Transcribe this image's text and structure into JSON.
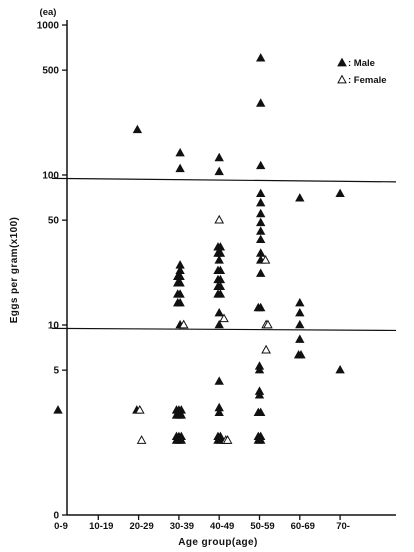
{
  "chart_data": {
    "type": "scatter",
    "xlabel": "Age group(age)",
    "ylabel": "Eggs per gram(x100)",
    "y_unit": "(ea)",
    "y_scale": "log",
    "y_ticks": [
      {
        "label": "1000",
        "value": 1000
      },
      {
        "label": "500",
        "value": 500
      },
      {
        "label": "100",
        "value": 100
      },
      {
        "label": "50",
        "value": 50
      },
      {
        "label": "10",
        "value": 10
      },
      {
        "label": "5",
        "value": 5
      },
      {
        "label": "0",
        "value": 0.1
      }
    ],
    "categories": [
      "0-9",
      "10-19",
      "20-29",
      "30-39",
      "40-49",
      "50-59",
      "60-69",
      "70-"
    ],
    "reference_lines": [
      {
        "name": "upper",
        "from": 95,
        "to": 90
      },
      {
        "name": "lower",
        "from": 9.5,
        "to": 9.2
      }
    ],
    "legend": {
      "position": "top-right",
      "male_label": ": Male",
      "female_label": ": Female"
    },
    "grid": false,
    "series": [
      {
        "name": "Male",
        "marker": "filled-triangle",
        "points": [
          {
            "x": "0-9",
            "o": 0,
            "y": 2.7
          },
          {
            "x": "20-29",
            "o": -0.1,
            "y": 200
          },
          {
            "x": "20-29",
            "o": -0.15,
            "y": 2.7
          },
          {
            "x": "30-39",
            "o": 0.1,
            "y": 140
          },
          {
            "x": "30-39",
            "o": 0.1,
            "y": 110
          },
          {
            "x": "30-39",
            "o": 0.1,
            "y": 25
          },
          {
            "x": "30-39",
            "o": 0.1,
            "y": 23
          },
          {
            "x": "30-39",
            "o": -0.1,
            "y": 21
          },
          {
            "x": "30-39",
            "o": 0.1,
            "y": 21
          },
          {
            "x": "30-39",
            "o": -0.1,
            "y": 19
          },
          {
            "x": "30-39",
            "o": 0.1,
            "y": 19
          },
          {
            "x": "30-39",
            "o": -0.1,
            "y": 16
          },
          {
            "x": "30-39",
            "o": 0.1,
            "y": 16
          },
          {
            "x": "30-39",
            "o": -0.1,
            "y": 14
          },
          {
            "x": "30-39",
            "o": 0.1,
            "y": 14
          },
          {
            "x": "30-39",
            "o": 0.1,
            "y": 10
          },
          {
            "x": "30-39",
            "o": -0.2,
            "y": 2.7
          },
          {
            "x": "30-39",
            "o": 0,
            "y": 2.7
          },
          {
            "x": "30-39",
            "o": 0.2,
            "y": 2.7
          },
          {
            "x": "30-39",
            "o": -0.2,
            "y": 2.5
          },
          {
            "x": "30-39",
            "o": 0,
            "y": 2.5
          },
          {
            "x": "30-39",
            "o": 0.2,
            "y": 2.5
          },
          {
            "x": "30-39",
            "o": -0.2,
            "y": 1.8
          },
          {
            "x": "30-39",
            "o": 0,
            "y": 1.8
          },
          {
            "x": "30-39",
            "o": 0.2,
            "y": 1.8
          },
          {
            "x": "30-39",
            "o": -0.2,
            "y": 1.7
          },
          {
            "x": "30-39",
            "o": 0,
            "y": 1.7
          },
          {
            "x": "30-39",
            "o": 0.2,
            "y": 1.7
          },
          {
            "x": "40-49",
            "o": 0,
            "y": 130
          },
          {
            "x": "40-49",
            "o": 0,
            "y": 105
          },
          {
            "x": "40-49",
            "o": -0.1,
            "y": 33
          },
          {
            "x": "40-49",
            "o": 0.1,
            "y": 33
          },
          {
            "x": "40-49",
            "o": -0.1,
            "y": 30
          },
          {
            "x": "40-49",
            "o": 0.1,
            "y": 30
          },
          {
            "x": "40-49",
            "o": 0,
            "y": 27
          },
          {
            "x": "40-49",
            "o": -0.1,
            "y": 23
          },
          {
            "x": "40-49",
            "o": 0.1,
            "y": 23
          },
          {
            "x": "40-49",
            "o": -0.1,
            "y": 20
          },
          {
            "x": "40-49",
            "o": 0.1,
            "y": 20
          },
          {
            "x": "40-49",
            "o": -0.1,
            "y": 18
          },
          {
            "x": "40-49",
            "o": 0.1,
            "y": 18
          },
          {
            "x": "40-49",
            "o": -0.1,
            "y": 16
          },
          {
            "x": "40-49",
            "o": 0.1,
            "y": 16
          },
          {
            "x": "40-49",
            "o": 0,
            "y": 12
          },
          {
            "x": "40-49",
            "o": 0,
            "y": 10
          },
          {
            "x": "40-49",
            "o": 0,
            "y": 4.2
          },
          {
            "x": "40-49",
            "o": 0,
            "y": 2.8
          },
          {
            "x": "40-49",
            "o": 0,
            "y": 2.6
          },
          {
            "x": "40-49",
            "o": -0.1,
            "y": 1.8
          },
          {
            "x": "40-49",
            "o": 0.1,
            "y": 1.8
          },
          {
            "x": "40-49",
            "o": -0.1,
            "y": 1.7
          },
          {
            "x": "40-49",
            "o": 0.1,
            "y": 1.7
          },
          {
            "x": "50-59",
            "o": 0.1,
            "y": 600
          },
          {
            "x": "50-59",
            "o": 0.1,
            "y": 300
          },
          {
            "x": "50-59",
            "o": 0.1,
            "y": 115
          },
          {
            "x": "50-59",
            "o": 0.1,
            "y": 75
          },
          {
            "x": "50-59",
            "o": 0.1,
            "y": 65
          },
          {
            "x": "50-59",
            "o": 0.1,
            "y": 55
          },
          {
            "x": "50-59",
            "o": 0.1,
            "y": 48
          },
          {
            "x": "50-59",
            "o": 0.1,
            "y": 42
          },
          {
            "x": "50-59",
            "o": 0.1,
            "y": 37
          },
          {
            "x": "50-59",
            "o": 0.1,
            "y": 30
          },
          {
            "x": "50-59",
            "o": 0.1,
            "y": 27
          },
          {
            "x": "50-59",
            "o": 0.1,
            "y": 22
          },
          {
            "x": "50-59",
            "o": -0.1,
            "y": 13
          },
          {
            "x": "50-59",
            "o": 0.1,
            "y": 13
          },
          {
            "x": "50-59",
            "o": 0,
            "y": 5.3
          },
          {
            "x": "50-59",
            "o": 0,
            "y": 5.0
          },
          {
            "x": "50-59",
            "o": 0,
            "y": 3.6
          },
          {
            "x": "50-59",
            "o": 0,
            "y": 3.4
          },
          {
            "x": "50-59",
            "o": -0.1,
            "y": 2.6
          },
          {
            "x": "50-59",
            "o": 0.1,
            "y": 2.6
          },
          {
            "x": "50-59",
            "o": -0.1,
            "y": 1.8
          },
          {
            "x": "50-59",
            "o": 0.1,
            "y": 1.8
          },
          {
            "x": "50-59",
            "o": -0.1,
            "y": 1.7
          },
          {
            "x": "50-59",
            "o": 0.1,
            "y": 1.7
          },
          {
            "x": "60-69",
            "o": 0,
            "y": 70
          },
          {
            "x": "60-69",
            "o": 0,
            "y": 14
          },
          {
            "x": "60-69",
            "o": 0,
            "y": 12
          },
          {
            "x": "60-69",
            "o": 0,
            "y": 10
          },
          {
            "x": "60-69",
            "o": 0,
            "y": 8
          },
          {
            "x": "60-69",
            "o": -0.1,
            "y": 6.3
          },
          {
            "x": "60-69",
            "o": 0.1,
            "y": 6.3
          },
          {
            "x": "70-",
            "o": 0,
            "y": 75
          },
          {
            "x": "70-",
            "o": 0,
            "y": 5
          }
        ]
      },
      {
        "name": "Female",
        "marker": "open-triangle",
        "points": [
          {
            "x": "20-29",
            "o": 0.1,
            "y": 2.7
          },
          {
            "x": "20-29",
            "o": 0.25,
            "y": 1.7
          },
          {
            "x": "30-39",
            "o": 0.4,
            "y": 10
          },
          {
            "x": "40-49",
            "o": 0,
            "y": 50
          },
          {
            "x": "40-49",
            "o": 0.4,
            "y": 11
          },
          {
            "x": "40-49",
            "o": 0.55,
            "y": 1.7
          },
          {
            "x": "40-49",
            "o": 0.7,
            "y": 1.7
          },
          {
            "x": "50-59",
            "o": 0.5,
            "y": 27
          },
          {
            "x": "50-59",
            "o": 0.55,
            "y": 10
          },
          {
            "x": "50-59",
            "o": 0.7,
            "y": 10
          },
          {
            "x": "50-59",
            "o": 0.55,
            "y": 6.8
          }
        ]
      }
    ]
  }
}
